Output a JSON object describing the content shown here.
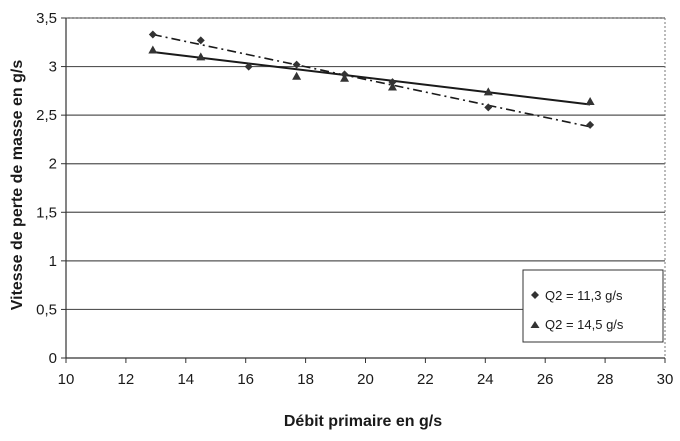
{
  "chart_data": {
    "type": "scatter",
    "xlabel": "Débit primaire en g/s",
    "ylabel": "Vitesse de perte de masse en g/s",
    "xlim": [
      10,
      30
    ],
    "ylim": [
      0,
      3.5
    ],
    "x_ticks": [
      "10",
      "12",
      "14",
      "16",
      "18",
      "20",
      "22",
      "24",
      "26",
      "28",
      "30"
    ],
    "y_ticks": [
      "0",
      "0,5",
      "1",
      "1,5",
      "2",
      "2,5",
      "3",
      "3,5"
    ],
    "grid": "horizontal",
    "legend_position": "bottom-right",
    "series": [
      {
        "name": "Q2 = 11,3 g/s",
        "marker": "diamond",
        "trendline": "dash-dot",
        "x": [
          12.9,
          14.5,
          16.1,
          17.7,
          19.3,
          20.9,
          24.1,
          27.5
        ],
        "y": [
          3.33,
          3.27,
          3.0,
          3.02,
          2.92,
          2.84,
          2.58,
          2.4
        ],
        "trend": {
          "x": [
            12.9,
            27.5
          ],
          "y": [
            3.33,
            2.38
          ]
        }
      },
      {
        "name": "Q2 = 14,5 g/s",
        "marker": "triangle",
        "trendline": "solid",
        "x": [
          12.9,
          14.5,
          17.7,
          19.3,
          20.9,
          24.1,
          27.5
        ],
        "y": [
          3.17,
          3.1,
          2.9,
          2.88,
          2.79,
          2.74,
          2.64
        ],
        "trend": {
          "x": [
            12.9,
            27.5
          ],
          "y": [
            3.15,
            2.61
          ]
        }
      }
    ]
  }
}
